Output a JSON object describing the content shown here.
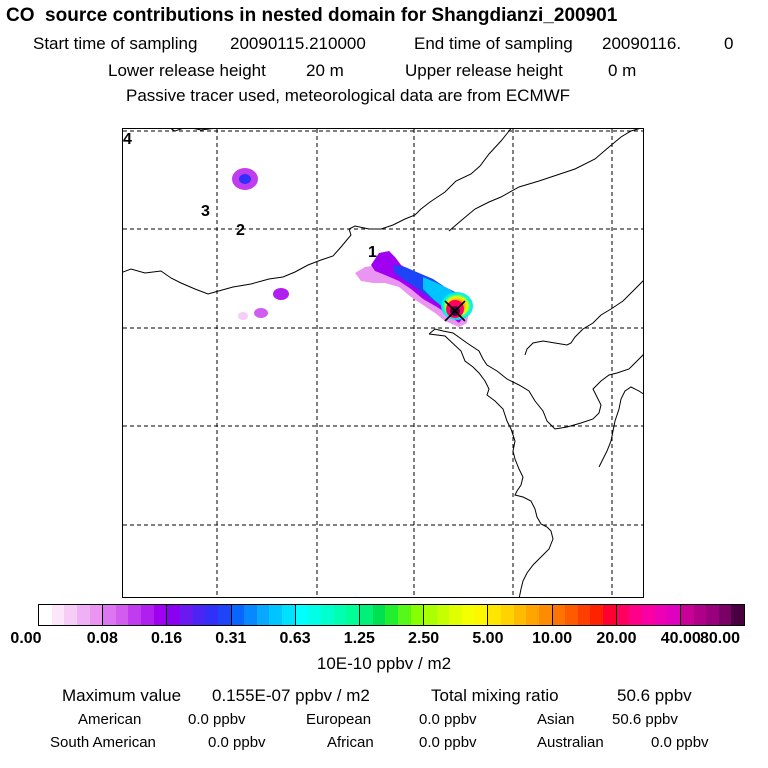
{
  "header": {
    "title": "CO  source contributions in nested domain for Shangdianzi_200901",
    "start_label": "Start time of sampling",
    "start_value": "20090115.210000",
    "end_label": "End time of sampling",
    "end_value": "20090116.",
    "end_suffix": "0",
    "lower_label": "Lower release height",
    "lower_value": "20 m",
    "upper_label": "Upper release height",
    "upper_value": "0 m",
    "note": "Passive tracer used, meteorological data are from ECMWF"
  },
  "map": {
    "labels": [
      "1",
      "2",
      "3",
      "4"
    ],
    "receptor_symbol": "X"
  },
  "colorbar": {
    "ticks": [
      "0.00",
      "0.08",
      "0.16",
      "0.31",
      "0.63",
      "1.25",
      "2.50",
      "5.00",
      "10.00",
      "20.00",
      "40.00",
      "80.00"
    ],
    "unit": "10E-10 ppbv / m2",
    "colors": [
      [
        "#ffffff",
        "#fbe6fb",
        "#f5cdf7",
        "#f0b0f5",
        "#eb95f3"
      ],
      [
        "#dd77f1",
        "#d25cf0",
        "#c23cef",
        "#b01ef0",
        "#a000f0"
      ],
      [
        "#8a00f0",
        "#6a1af0",
        "#4c24f4",
        "#3030f8",
        "#1e44f8"
      ],
      [
        "#0866ff",
        "#0888ff",
        "#08a8ff",
        "#00c4ff",
        "#00e0ff"
      ],
      [
        "#00ffff",
        "#00ffe6",
        "#00ffcc",
        "#00ffb0",
        "#00ff96"
      ],
      [
        "#00f078",
        "#00e050",
        "#22ee30",
        "#55f818",
        "#88ff00"
      ],
      [
        "#aaff00",
        "#c6ff00",
        "#e0ff00",
        "#f4ff00",
        "#fff700"
      ],
      [
        "#ffe600",
        "#ffd200",
        "#ffbb00",
        "#ffa400",
        "#ff8c00"
      ],
      [
        "#ff7400",
        "#ff5a00",
        "#ff3e00",
        "#ff2200",
        "#ff0030"
      ],
      [
        "#ff0060",
        "#ff0088",
        "#f800a4",
        "#ee00b4",
        "#e000c0"
      ],
      [
        "#c80098",
        "#b0008a",
        "#98007e",
        "#7a0066",
        "#4a0040"
      ]
    ]
  },
  "stats": {
    "max_label": "Maximum value",
    "max_value": "0.155E-07 ppbv / m2",
    "total_label": "Total mixing ratio",
    "total_value": "50.6 ppbv",
    "sources": [
      {
        "name": "American",
        "value": "0.0 ppbv"
      },
      {
        "name": "European",
        "value": "0.0 ppbv"
      },
      {
        "name": "Asian",
        "value": "50.6 ppbv"
      },
      {
        "name": "South American",
        "value": "0.0 ppbv"
      },
      {
        "name": "African",
        "value": "0.0 ppbv"
      },
      {
        "name": "Australian",
        "value": "0.0 ppbv"
      }
    ]
  }
}
